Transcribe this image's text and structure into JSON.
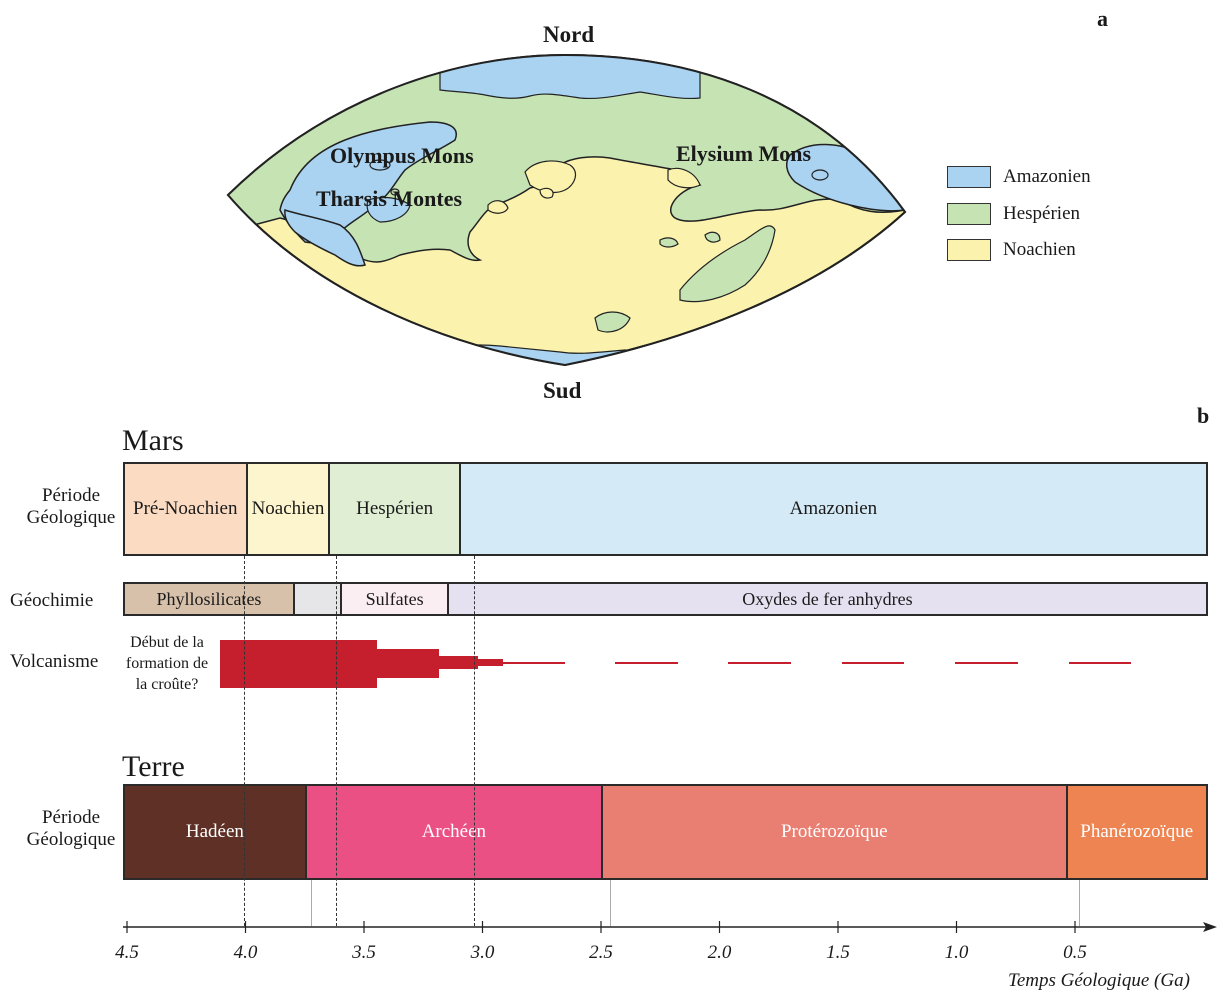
{
  "panel_a": {
    "label": "a",
    "north": "Nord",
    "south": "Sud",
    "features": {
      "olympus": "Olympus Mons",
      "tharsis": "Tharsis Montes",
      "elysium": "Elysium Mons"
    },
    "legend": [
      {
        "label": "Amazonien",
        "color": "#a9d3f0"
      },
      {
        "label": "Hespérien",
        "color": "#c6e3b4"
      },
      {
        "label": "Noachien",
        "color": "#faf2ad"
      }
    ]
  },
  "panel_b": {
    "label": "b",
    "mars_title": "Mars",
    "earth_title": "Terre",
    "row_labels": {
      "period_line1": "Période",
      "period_line2": "Géologique",
      "geochem": "Géochimie",
      "volcanism": "Volcanisme",
      "earth_period_line1": "Période",
      "earth_period_line2": "Géologique"
    },
    "mars_periods": [
      {
        "label": "Pré-Noachien",
        "start": 4.5,
        "end": 4.0,
        "color": "#fbdcc2"
      },
      {
        "label": "Noachien",
        "start": 4.0,
        "end": 3.65,
        "color": "#fcf5cd"
      },
      {
        "label": "Hespérien",
        "start": 3.65,
        "end": 3.1,
        "color": "#e0efd4"
      },
      {
        "label": "Amazonien",
        "start": 3.1,
        "end": 0.0,
        "color": "#d4ebf7"
      }
    ],
    "geochem": [
      {
        "label": "Phyllosilicates",
        "start": 4.5,
        "end": 3.8,
        "color": "#d7c1ab"
      },
      {
        "label": "",
        "start": 3.8,
        "end": 3.6,
        "color": "#e6e6e8"
      },
      {
        "label": "Sulfates",
        "start": 3.6,
        "end": 3.15,
        "color": "#fbeef3"
      },
      {
        "label": "Oxydes de fer anhydres",
        "start": 3.15,
        "end": 0.0,
        "color": "#e5e1f0"
      }
    ],
    "volcanism_note": [
      "Début de la",
      "formation de",
      "la croûte?"
    ],
    "volcanism_color": "#c51f2e",
    "earth_periods": [
      {
        "label": "Hadéen",
        "start": 4.5,
        "end": 3.75,
        "color": "#5e3026"
      },
      {
        "label": "Archéen",
        "start": 3.75,
        "end": 2.5,
        "color": "#ea5083"
      },
      {
        "label": "Protérozoïque",
        "start": 2.5,
        "end": 0.54,
        "color": "#e87f72"
      },
      {
        "label": "Phanérozoïque",
        "start": 0.54,
        "end": 0.0,
        "color": "#ee8451"
      }
    ],
    "axis": {
      "ticks": [
        "4.5",
        "4.0",
        "3.5",
        "3.0",
        "2.5",
        "2.0",
        "1.5",
        "1.0",
        "0.5"
      ],
      "title": "Temps Géologique (Ga)"
    }
  }
}
